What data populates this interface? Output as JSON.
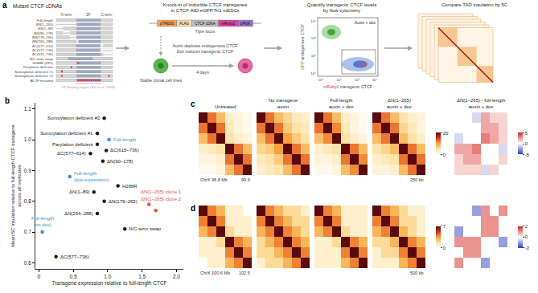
{
  "panel_a": {
    "label": "a",
    "mutants": {
      "title": "Mutant CTCF cDNAs",
      "length": 736,
      "domains": [
        {
          "name": "N-term",
          "range": [
            1,
            265
          ]
        },
        {
          "name": "ZF",
          "range": [
            266,
            577
          ]
        },
        {
          "name": "C-term",
          "range": [
            578,
            736
          ]
        }
      ],
      "items": [
        {
          "name": "Full-length"
        },
        {
          "name": "ΔN(1–265)",
          "deleted": [
            1,
            265
          ]
        },
        {
          "name": "ΔN(1–89)",
          "deleted": [
            1,
            89
          ]
        },
        {
          "name": "ΔN(90–178)",
          "deleted": [
            90,
            178
          ]
        },
        {
          "name": "ΔN(179–265)",
          "deleted": [
            179,
            265
          ]
        },
        {
          "name": "ΔN(264–288)",
          "deleted": [
            264,
            288
          ]
        },
        {
          "name": "ΔC(577–614)",
          "deleted": [
            577,
            614
          ]
        },
        {
          "name": "ΔC(577–736)",
          "deleted": [
            577,
            736
          ]
        },
        {
          "name": "ΔC(615–736)",
          "deleted": [
            615,
            736
          ]
        },
        {
          "name": "N/C-term swap",
          "swap": true
        },
        {
          "name": "H288R (ZF1)",
          "mutation_sites": [
            288
          ]
        },
        {
          "name": "Parylation deficient",
          "mutation_sites": [
            200
          ]
        },
        {
          "name": "Sumoylation deficient #1",
          "mutation_sites": [
            74
          ]
        },
        {
          "name": "Sumoylation deficient #2",
          "mutation_sites": [
            74,
            689
          ]
        },
        {
          "name": "All ZF mutated",
          "mutation_sites": [
            290,
            318,
            346,
            374,
            402,
            430,
            458,
            486,
            514,
            542,
            570
          ]
        }
      ],
      "note": "ZF binding region (Xie et al. 2008)"
    },
    "construct": {
      "title": [
        "Knock-in of inducible CTCF transgenes",
        "in CTCF-AID-eGFP,Tir1 mESCs"
      ],
      "parts": [
        {
          "name": "pTRE3G",
          "color": "#f4a259"
        },
        {
          "name": "FLAG",
          "color": "#f3d9b1"
        },
        {
          "name": "CTCF cDNA",
          "color": "#bdbdbd"
        },
        {
          "name": "mRuby2",
          "color": "#d9479b"
        },
        {
          "name": "pPGK",
          "color": "#9a72c6"
        }
      ],
      "locus": "Tigre locus",
      "cells": "Stable clonal cell lines",
      "treatment": [
        "Auxin depletes endogenous CTCF",
        "Dox induces transgenic CTCF"
      ],
      "duration": "4 days"
    },
    "flow": {
      "title": [
        "Quantify transgenic CTCF levels",
        "by flow cytometry"
      ],
      "gate": "Auxin + dox",
      "ylabel": [
        "GFP",
        "endogenous CTCF"
      ],
      "xlabel": [
        "mRuby2",
        "transgenic CTCF"
      ],
      "yticks": [
        "10⁵",
        "10³",
        "10¹",
        "10⁰"
      ],
      "xticks": [
        "10⁰",
        "10¹",
        "10³",
        "10⁵"
      ]
    },
    "fivec": {
      "title": "Compare TAD insulation by 5C"
    }
  },
  "chart_data": {
    "label": "b",
    "type": "scatter",
    "xlabel": "Transgene expression relative to full-length CTCF",
    "ylabel": [
      "Mean 5C insulation relative to full-length CTCF transgene",
      "across all replicates"
    ],
    "xlim": [
      -0.05,
      2.1
    ],
    "ylim": [
      0.58,
      1.12
    ],
    "xticks": [
      0,
      0.5,
      {
        "value": 1,
        "label": "1.0"
      },
      1.5,
      {
        "value": 2,
        "label": "2.0"
      }
    ],
    "yticks": [
      0.6,
      0.7,
      0.8,
      0.9,
      {
        "value": 1,
        "label": "1.0"
      },
      1.1
    ],
    "grid": false,
    "points": [
      {
        "name": "Sumoylation deficient #2",
        "x": 0.95,
        "y": 1.07,
        "color": "#1a1a1a"
      },
      {
        "name": "Sumoylation deficient #1",
        "x": 0.85,
        "y": 1.02,
        "color": "#1a1a1a"
      },
      {
        "name": "Parylation deficient",
        "x": 0.85,
        "y": 0.985,
        "color": "#1a1a1a"
      },
      {
        "name": "Full-length",
        "x": 1.02,
        "y": 1.0,
        "color": "#3a8fd6"
      },
      {
        "name": "ΔC(577–614)",
        "x": 0.75,
        "y": 0.955,
        "color": "#1a1a1a"
      },
      {
        "name": "ΔC(615–736)",
        "x": 0.98,
        "y": 0.965,
        "color": "#1a1a1a"
      },
      {
        "name": "ΔN(90–178)",
        "x": 0.93,
        "y": 0.93,
        "color": "#1a1a1a"
      },
      {
        "name": "Full-length (low expression)",
        "x": 0.45,
        "y": 0.88,
        "color": "#3a8fd6"
      },
      {
        "name": "H288R",
        "x": 1.15,
        "y": 0.85,
        "color": "#1a1a1a"
      },
      {
        "name": "ΔN(1–89)",
        "x": 0.8,
        "y": 0.83,
        "color": "#1a1a1a"
      },
      {
        "name": "ΔN(179–265)",
        "x": 0.95,
        "y": 0.8,
        "color": "#1a1a1a"
      },
      {
        "name": "ΔN(264–288)",
        "x": 0.85,
        "y": 0.76,
        "color": "#1a1a1a"
      },
      {
        "name": "ΔN(1–265) clone 1",
        "x": 1.6,
        "y": 0.79,
        "color": "#e0533c"
      },
      {
        "name": "ΔN(1–265) clone 2",
        "x": 1.7,
        "y": 0.77,
        "color": "#e0533c"
      },
      {
        "name": "N/C-term swap",
        "x": 1.25,
        "y": 0.71,
        "color": "#1a1a1a"
      },
      {
        "name": "Full-length (no dox)",
        "x": 0.05,
        "y": 0.7,
        "color": "#3a8fd6"
      },
      {
        "name": "ΔC(577–736)",
        "x": 0.25,
        "y": 0.62,
        "color": "#1a1a1a"
      }
    ]
  },
  "panels_cd": [
    {
      "label": "c",
      "titles": [
        [
          "Untreated"
        ],
        [
          "No transgene",
          "auxin"
        ],
        [
          "Full-length",
          "auxin + dox"
        ],
        [
          "ΔN(1–265)",
          "auxin + dox"
        ],
        [
          "ΔN(1–265) - full-length",
          "auxin + dox"
        ]
      ],
      "region_start": "ChrX 98.8 Mb",
      "region_end": "99.9",
      "scale_bar": "250 kb",
      "colorbar": {
        "range": [
          0,
          20
        ],
        "ticks": [
          0,
          20
        ]
      },
      "diff_colorbar": {
        "range": [
          -5,
          5
        ],
        "ticks": [
          5,
          0,
          -5
        ]
      },
      "maps": [
        [
          [
            20,
            12,
            8,
            3,
            2,
            1
          ],
          [
            12,
            20,
            12,
            4,
            2,
            1
          ],
          [
            8,
            12,
            20,
            5,
            3,
            2
          ],
          [
            3,
            4,
            5,
            20,
            12,
            8
          ],
          [
            2,
            2,
            3,
            12,
            20,
            12
          ],
          [
            1,
            1,
            2,
            8,
            12,
            20
          ]
        ],
        [
          [
            20,
            12,
            8,
            6,
            4,
            3
          ],
          [
            12,
            20,
            12,
            7,
            5,
            4
          ],
          [
            8,
            12,
            20,
            10,
            7,
            5
          ],
          [
            6,
            7,
            10,
            20,
            12,
            8
          ],
          [
            4,
            5,
            7,
            12,
            20,
            12
          ],
          [
            3,
            4,
            5,
            8,
            12,
            20
          ]
        ],
        [
          [
            20,
            12,
            8,
            3,
            2,
            1
          ],
          [
            12,
            20,
            11,
            4,
            2,
            1
          ],
          [
            8,
            11,
            20,
            5,
            3,
            2
          ],
          [
            3,
            4,
            5,
            20,
            12,
            8
          ],
          [
            2,
            2,
            3,
            12,
            20,
            11
          ],
          [
            1,
            1,
            2,
            8,
            11,
            20
          ]
        ],
        [
          [
            20,
            12,
            8,
            5,
            3,
            2
          ],
          [
            12,
            20,
            12,
            6,
            4,
            2
          ],
          [
            8,
            12,
            20,
            8,
            5,
            3
          ],
          [
            5,
            6,
            8,
            20,
            12,
            8
          ],
          [
            3,
            4,
            5,
            12,
            20,
            12
          ],
          [
            2,
            2,
            3,
            8,
            12,
            20
          ]
        ]
      ],
      "diff_map": [
        [
          0,
          0,
          -1,
          2,
          1,
          1
        ],
        [
          0,
          0,
          0,
          2,
          2,
          1
        ],
        [
          -1,
          0,
          0,
          3,
          2,
          1
        ],
        [
          2,
          2,
          3,
          0,
          0,
          -1
        ],
        [
          1,
          2,
          2,
          0,
          0,
          1
        ],
        [
          1,
          1,
          1,
          -1,
          1,
          0
        ]
      ]
    },
    {
      "label": "d",
      "region_start": "ChrX 100.6 Mb",
      "region_end": "102.5",
      "scale_bar": "500 kb",
      "colorbar": {
        "range": [
          0,
          7
        ],
        "ticks": [
          0,
          7
        ]
      },
      "diff_colorbar": {
        "range": [
          -2,
          2
        ],
        "ticks": [
          2,
          0,
          -2
        ]
      },
      "maps": [
        [
          [
            7,
            4,
            3,
            1,
            1,
            0
          ],
          [
            4,
            7,
            4,
            1,
            1,
            1
          ],
          [
            3,
            4,
            7,
            2,
            1,
            1
          ],
          [
            1,
            1,
            2,
            7,
            4,
            3
          ],
          [
            1,
            1,
            1,
            4,
            7,
            4
          ],
          [
            0,
            1,
            1,
            3,
            4,
            7
          ]
        ],
        [
          [
            7,
            4,
            3,
            2,
            2,
            1
          ],
          [
            4,
            7,
            4,
            3,
            2,
            2
          ],
          [
            3,
            4,
            7,
            4,
            3,
            2
          ],
          [
            2,
            3,
            4,
            7,
            4,
            3
          ],
          [
            2,
            2,
            3,
            4,
            7,
            4
          ],
          [
            1,
            2,
            2,
            3,
            4,
            7
          ]
        ],
        [
          [
            7,
            4,
            3,
            1,
            1,
            1
          ],
          [
            4,
            7,
            4,
            1,
            1,
            1
          ],
          [
            3,
            4,
            7,
            2,
            1,
            1
          ],
          [
            1,
            1,
            2,
            7,
            4,
            3
          ],
          [
            1,
            1,
            1,
            4,
            7,
            4
          ],
          [
            1,
            1,
            1,
            3,
            4,
            7
          ]
        ],
        [
          [
            7,
            4,
            3,
            2,
            1,
            1
          ],
          [
            4,
            7,
            4,
            2,
            2,
            1
          ],
          [
            3,
            4,
            7,
            3,
            2,
            1
          ],
          [
            2,
            2,
            3,
            7,
            4,
            3
          ],
          [
            1,
            2,
            2,
            4,
            7,
            4
          ],
          [
            1,
            1,
            1,
            3,
            4,
            7
          ]
        ]
      ],
      "diff_map": [
        [
          0,
          0,
          -1,
          1,
          0,
          1
        ],
        [
          0,
          0,
          0,
          1,
          1,
          0
        ],
        [
          -1,
          0,
          0,
          1,
          1,
          0
        ],
        [
          1,
          1,
          1,
          0,
          0,
          -1
        ],
        [
          0,
          1,
          1,
          0,
          0,
          0
        ],
        [
          1,
          0,
          0,
          -1,
          0,
          0
        ]
      ]
    }
  ]
}
